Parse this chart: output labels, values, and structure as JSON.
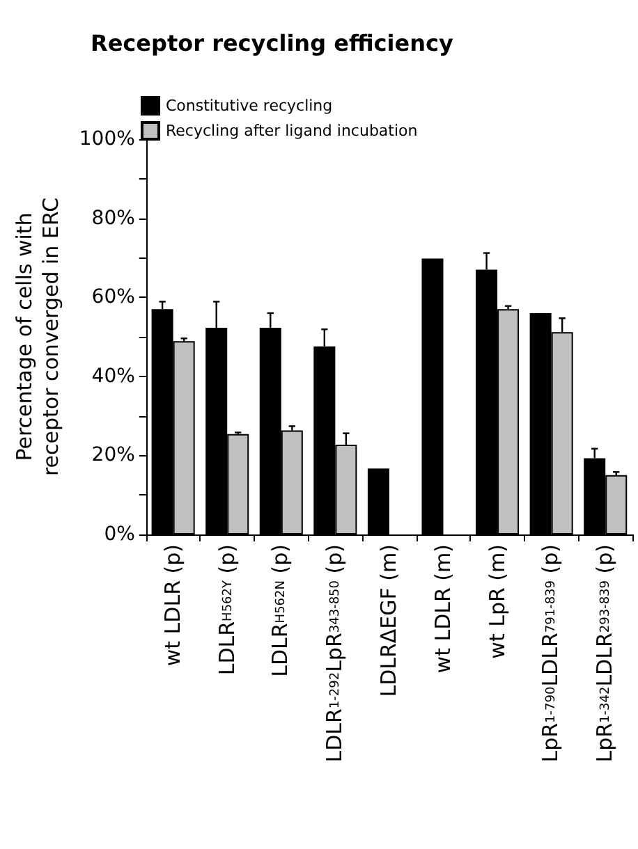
{
  "chart_data": {
    "type": "bar",
    "title": "Receptor recycling efficiency",
    "ylabel": "Percentage of cells with\nreceptor converged in ERC",
    "categories": [
      "wt LDLR (p)",
      "LDLR$_{H562Y}$ (p)",
      "LDLR$_{H562N}$ (p)",
      "LDLR$_{1-292}$LpR$_{343-850}$ (p)",
      "LDLRΔEGF (m)",
      "wt LDLR (m)",
      "wt LpR (m)",
      "LpR$_{1-790}$LDLR$_{791-839}$ (p)",
      "LpR$_{1-342}$LDLR$_{293-839}$ (p)"
    ],
    "series": [
      {
        "name": "Constitutive recycling",
        "color": "#000000",
        "values": [
          57.0,
          52.3,
          52.3,
          47.6,
          16.7,
          69.8,
          67.0,
          56.0,
          19.3
        ],
        "errors": [
          [
            57.0,
            58.9
          ],
          [
            52.3,
            58.9
          ],
          [
            52.3,
            56.0
          ],
          [
            47.6,
            51.9
          ],
          null,
          null,
          [
            67.0,
            71.2
          ],
          null,
          [
            19.3,
            21.7
          ]
        ]
      },
      {
        "name": "Recycling after ligand incubation",
        "color": "#c0c0c0",
        "values": [
          48.9,
          25.4,
          26.3,
          22.7,
          null,
          null,
          57.0,
          51.2,
          15.0
        ],
        "errors": [
          [
            48.9,
            49.6
          ],
          [
            25.4,
            25.8
          ],
          [
            26.3,
            27.4
          ],
          [
            22.7,
            25.6
          ],
          null,
          null,
          [
            57.0,
            57.8
          ],
          [
            51.2,
            54.7
          ],
          [
            15.0,
            15.8
          ]
        ]
      }
    ],
    "ylim": [
      0,
      100
    ],
    "yticks": [
      {
        "value": 0,
        "label": "0%"
      },
      {
        "value": 10,
        "label": null
      },
      {
        "value": 20,
        "label": "20%"
      },
      {
        "value": 30,
        "label": null
      },
      {
        "value": 40,
        "label": "40%"
      },
      {
        "value": 50,
        "label": null
      },
      {
        "value": 60,
        "label": "60%"
      },
      {
        "value": 70,
        "label": null
      },
      {
        "value": 80,
        "label": "80%"
      },
      {
        "value": 90,
        "label": null
      },
      {
        "value": 100,
        "label": "100%"
      }
    ],
    "grid": false,
    "legend": "top left"
  }
}
